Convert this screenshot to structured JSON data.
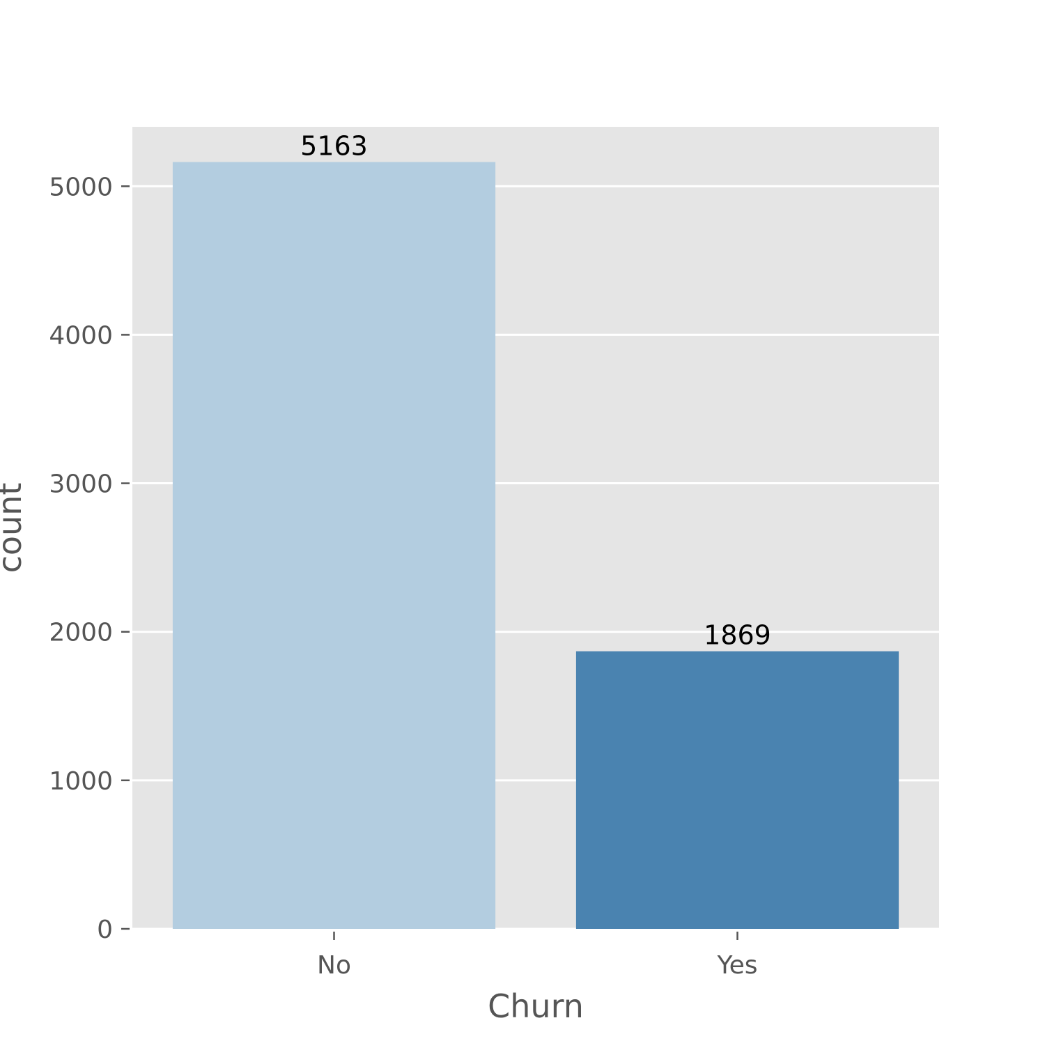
{
  "chart_data": {
    "type": "bar",
    "title": "",
    "xlabel": "Churn",
    "ylabel": "count",
    "categories": [
      "No",
      "Yes"
    ],
    "values": [
      5163,
      1869
    ],
    "data_labels": [
      "5163",
      "1869"
    ],
    "ylim": [
      0,
      5400
    ],
    "yticks": [
      0,
      1000,
      2000,
      3000,
      4000,
      5000
    ],
    "ytick_labels": [
      "0",
      "1000",
      "2000",
      "3000",
      "4000",
      "5000"
    ],
    "grid": true,
    "legend": "none",
    "bar_colors": [
      "#b3cde0",
      "#4a83b0"
    ],
    "background_color": "#e5e5e5",
    "grid_color": "#ffffff"
  }
}
